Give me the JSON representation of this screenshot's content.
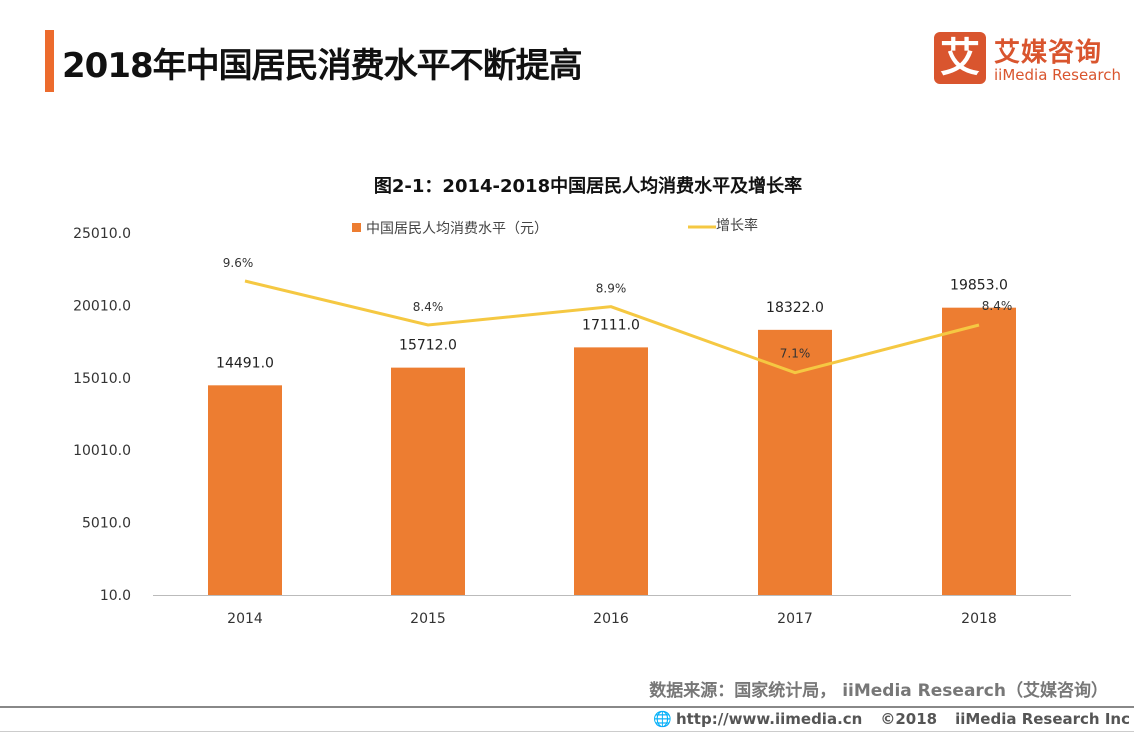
{
  "header": {
    "title": "2018年中国居民消费水平不断提高"
  },
  "logo": {
    "mark": "艾",
    "name_cn": "艾媒咨询",
    "name_en": "iiMedia Research"
  },
  "source": "数据来源：国家统计局， iiMedia Research（艾媒咨询）",
  "footer": {
    "url": "http://www.iimedia.cn",
    "copyright": "©2018",
    "company": "iiMedia Research  Inc",
    "icon": "globe-icon"
  },
  "colors": {
    "accent": "#ec6b2d",
    "bar": "#ed7d31",
    "line": "#f5c842"
  },
  "chart_data": {
    "type": "bar+line",
    "title": "图2-1：2014-2018中国居民人均消费水平及增长率",
    "categories": [
      "2014",
      "2015",
      "2016",
      "2017",
      "2018"
    ],
    "y_ticks": [
      "10.0",
      "5010.0",
      "10010.0",
      "15010.0",
      "20010.0",
      "25010.0"
    ],
    "ylim": [
      10,
      25010
    ],
    "grid": false,
    "legend_placement": "top",
    "series": [
      {
        "name": "中国居民人均消费水平（元）",
        "type": "bar",
        "values": [
          14491.0,
          15712.0,
          17111.0,
          18322.0,
          19853.0
        ],
        "labels": [
          "14491.0",
          "15712.0",
          "17111.0",
          "18322.0",
          "19853.0"
        ]
      },
      {
        "name": "增长率",
        "type": "line",
        "secondary_axis": true,
        "values": [
          9.6,
          8.4,
          8.9,
          7.1,
          8.4
        ],
        "labels": [
          "9.6%",
          "8.4%",
          "8.9%",
          "7.1%",
          "8.4%"
        ]
      }
    ]
  }
}
